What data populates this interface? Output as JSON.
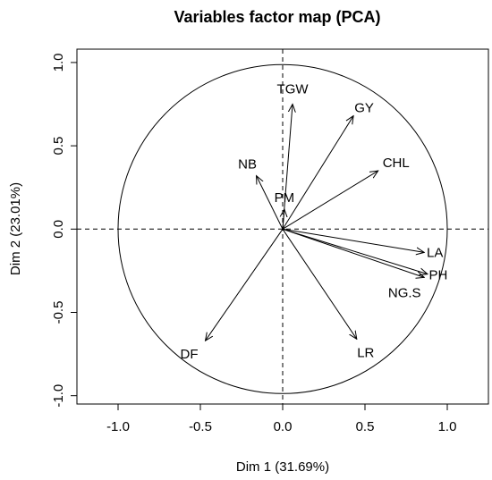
{
  "chart_data": {
    "type": "scatter",
    "title": "Variables factor map (PCA)",
    "xlabel": "Dim 1 (31.69%)",
    "ylabel": "Dim 2 (23.01%)",
    "xlim": [
      -1.25,
      1.25
    ],
    "ylim": [
      -1.05,
      1.08
    ],
    "xticks": [
      "-1.0",
      "-0.5",
      "0.0",
      "0.5",
      "1.0"
    ],
    "xtick_values": [
      -1.0,
      -0.5,
      0.0,
      0.5,
      1.0
    ],
    "yticks": [
      "-1.0",
      "-0.5",
      "0.0",
      "0.5",
      "1.0"
    ],
    "ytick_values": [
      -1.0,
      -0.5,
      0.0,
      0.5,
      1.0
    ],
    "unit_circle": true,
    "reference_lines": true,
    "variables": [
      {
        "name": "TGW",
        "x": 0.06,
        "y": 0.75
      },
      {
        "name": "GY",
        "x": 0.43,
        "y": 0.68
      },
      {
        "name": "CHL",
        "x": 0.58,
        "y": 0.35
      },
      {
        "name": "NB",
        "x": -0.16,
        "y": 0.32
      },
      {
        "name": "PM",
        "x": 0.01,
        "y": 0.12
      },
      {
        "name": "LA",
        "x": 0.86,
        "y": -0.14
      },
      {
        "name": "PH",
        "x": 0.88,
        "y": -0.27
      },
      {
        "name": "NG.S",
        "x": 0.86,
        "y": -0.29
      },
      {
        "name": "DF",
        "x": -0.47,
        "y": -0.67
      },
      {
        "name": "LR",
        "x": 0.45,
        "y": -0.66
      }
    ]
  }
}
